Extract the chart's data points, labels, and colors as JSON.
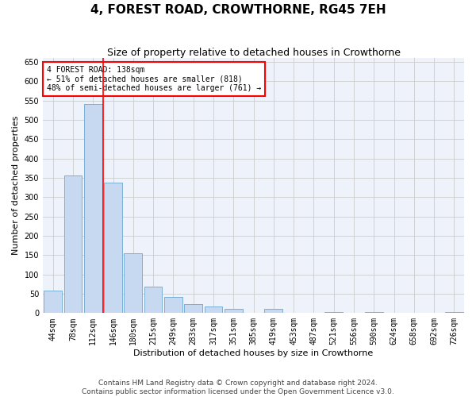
{
  "title": "4, FOREST ROAD, CROWTHORNE, RG45 7EH",
  "subtitle": "Size of property relative to detached houses in Crowthorne",
  "xlabel": "Distribution of detached houses by size in Crowthorne",
  "ylabel": "Number of detached properties",
  "categories": [
    "44sqm",
    "78sqm",
    "112sqm",
    "146sqm",
    "180sqm",
    "215sqm",
    "249sqm",
    "283sqm",
    "317sqm",
    "351sqm",
    "385sqm",
    "419sqm",
    "453sqm",
    "487sqm",
    "521sqm",
    "556sqm",
    "590sqm",
    "624sqm",
    "658sqm",
    "692sqm",
    "726sqm"
  ],
  "values": [
    58,
    355,
    540,
    337,
    155,
    68,
    42,
    23,
    18,
    10,
    0,
    10,
    0,
    0,
    3,
    0,
    3,
    0,
    0,
    0,
    3
  ],
  "bar_color": "#c6d9f0",
  "bar_edge_color": "#7bafd4",
  "red_line_x": 2.5,
  "annotation_text": "4 FOREST ROAD: 138sqm\n← 51% of detached houses are smaller (818)\n48% of semi-detached houses are larger (761) →",
  "annotation_box_color": "white",
  "annotation_box_edge_color": "red",
  "ylim": [
    0,
    660
  ],
  "yticks": [
    0,
    50,
    100,
    150,
    200,
    250,
    300,
    350,
    400,
    450,
    500,
    550,
    600,
    650
  ],
  "grid_color": "#cccccc",
  "background_color": "#eef2fb",
  "footer": "Contains HM Land Registry data © Crown copyright and database right 2024.\nContains public sector information licensed under the Open Government Licence v3.0.",
  "title_fontsize": 11,
  "subtitle_fontsize": 9,
  "axis_label_fontsize": 8,
  "tick_fontsize": 7,
  "annotation_fontsize": 7,
  "footer_fontsize": 6.5
}
